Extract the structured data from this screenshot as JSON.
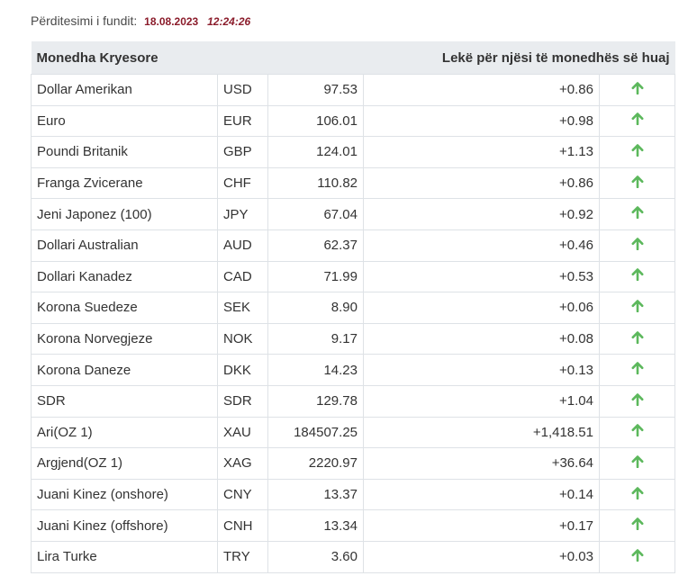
{
  "update": {
    "label": "Përditesimi i fundit:",
    "date": "18.08.2023",
    "time": "12:24:26"
  },
  "table": {
    "header_left": "Monedha Kryesore",
    "header_right": "Lekë për njësi të monedhës së huaj",
    "arrow_color": "#5cb85c",
    "rows": [
      {
        "name": "Dollar Amerikan",
        "code": "USD",
        "rate": "97.53",
        "change": "+0.86",
        "icon": "arrow-up-icon"
      },
      {
        "name": "Euro",
        "code": "EUR",
        "rate": "106.01",
        "change": "+0.98",
        "icon": "arrow-up-icon"
      },
      {
        "name": "Poundi Britanik",
        "code": "GBP",
        "rate": "124.01",
        "change": "+1.13",
        "icon": "arrow-up-icon"
      },
      {
        "name": "Franga Zvicerane",
        "code": "CHF",
        "rate": "110.82",
        "change": "+0.86",
        "icon": "arrow-up-icon"
      },
      {
        "name": "Jeni Japonez (100)",
        "code": "JPY",
        "rate": "67.04",
        "change": "+0.92",
        "icon": "arrow-up-icon"
      },
      {
        "name": "Dollari Australian",
        "code": "AUD",
        "rate": "62.37",
        "change": "+0.46",
        "icon": "arrow-up-icon"
      },
      {
        "name": "Dollari Kanadez",
        "code": "CAD",
        "rate": "71.99",
        "change": "+0.53",
        "icon": "arrow-up-icon"
      },
      {
        "name": "Korona Suedeze",
        "code": "SEK",
        "rate": "8.90",
        "change": "+0.06",
        "icon": "arrow-up-icon"
      },
      {
        "name": "Korona Norvegjeze",
        "code": "NOK",
        "rate": "9.17",
        "change": "+0.08",
        "icon": "arrow-up-icon"
      },
      {
        "name": "Korona Daneze",
        "code": "DKK",
        "rate": "14.23",
        "change": "+0.13",
        "icon": "arrow-up-icon"
      },
      {
        "name": "SDR",
        "code": "SDR",
        "rate": "129.78",
        "change": "+1.04",
        "icon": "arrow-up-icon"
      },
      {
        "name": "Ari(OZ 1)",
        "code": "XAU",
        "rate": "184507.25",
        "change": "+1,418.51",
        "icon": "arrow-up-icon"
      },
      {
        "name": "Argjend(OZ 1)",
        "code": "XAG",
        "rate": "2220.97",
        "change": "+36.64",
        "icon": "arrow-up-icon"
      },
      {
        "name": "Juani Kinez (onshore)",
        "code": "CNY",
        "rate": "13.37",
        "change": "+0.14",
        "icon": "arrow-up-icon"
      },
      {
        "name": "Juani Kinez (offshore)",
        "code": "CNH",
        "rate": "13.34",
        "change": "+0.17",
        "icon": "arrow-up-icon"
      },
      {
        "name": "Lira Turke",
        "code": "TRY",
        "rate": "3.60",
        "change": "+0.03",
        "icon": "arrow-up-icon"
      }
    ]
  }
}
